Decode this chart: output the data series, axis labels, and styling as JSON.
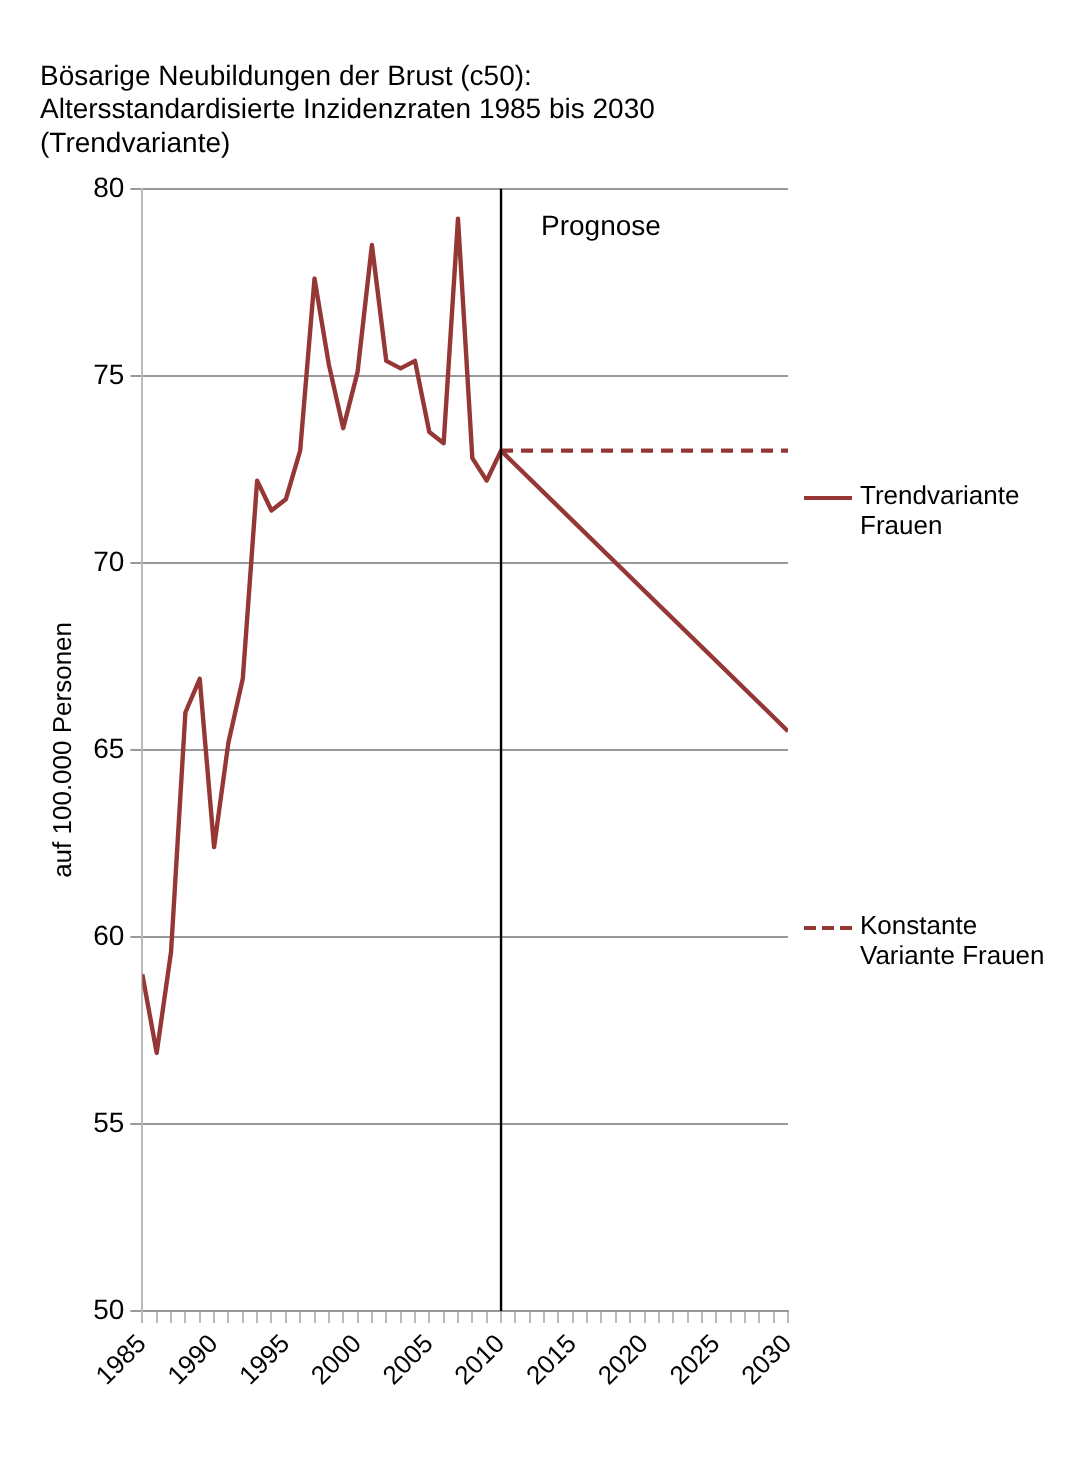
{
  "chart_data": {
    "type": "line",
    "title": "Bösarige Neubildungen der Brust (c50):\nAltersstandardisierte Inzidenzraten 1985 bis 2030\n(Trendvariante)",
    "ylabel": "auf 100.000 Personen",
    "series": [
      {
        "name": "Trendvariante Frauen",
        "color": "#953735",
        "line_style": "solid",
        "x": [
          1985,
          1986,
          1987,
          1988,
          1989,
          1990,
          1991,
          1992,
          1993,
          1994,
          1995,
          1996,
          1997,
          1998,
          1999,
          2000,
          2001,
          2002,
          2003,
          2004,
          2005,
          2006,
          2007,
          2008,
          2009,
          2010,
          2030
        ],
        "values": [
          59.0,
          56.9,
          59.6,
          66.0,
          66.9,
          62.4,
          65.2,
          66.9,
          72.2,
          71.4,
          71.7,
          73.0,
          77.6,
          75.3,
          73.6,
          75.1,
          78.5,
          75.4,
          75.2,
          75.4,
          73.5,
          73.2,
          79.2,
          72.8,
          72.2,
          73.0,
          65.5
        ]
      },
      {
        "name": "Konstante Variante Frauen",
        "color": "#953735",
        "line_style": "dashed",
        "x": [
          2010,
          2030
        ],
        "values": [
          73.0,
          73.0
        ]
      }
    ],
    "xlim": [
      1985,
      2030
    ],
    "xticks": [
      1985,
      {
        "value": 1986,
        "label": null
      },
      {
        "value": 1987,
        "label": null
      },
      {
        "value": 1988,
        "label": null
      },
      {
        "value": 1989,
        "label": null
      },
      1990,
      {
        "value": 1991,
        "label": null
      },
      {
        "value": 1992,
        "label": null
      },
      {
        "value": 1993,
        "label": null
      },
      {
        "value": 1994,
        "label": null
      },
      1995,
      {
        "value": 1996,
        "label": null
      },
      {
        "value": 1997,
        "label": null
      },
      {
        "value": 1998,
        "label": null
      },
      {
        "value": 1999,
        "label": null
      },
      2000,
      {
        "value": 2001,
        "label": null
      },
      {
        "value": 2002,
        "label": null
      },
      {
        "value": 2003,
        "label": null
      },
      {
        "value": 2004,
        "label": null
      },
      2005,
      {
        "value": 2006,
        "label": null
      },
      {
        "value": 2007,
        "label": null
      },
      {
        "value": 2008,
        "label": null
      },
      {
        "value": 2009,
        "label": null
      },
      2010,
      {
        "value": 2011,
        "label": null
      },
      {
        "value": 2012,
        "label": null
      },
      {
        "value": 2013,
        "label": null
      },
      {
        "value": 2014,
        "label": null
      },
      2015,
      {
        "value": 2016,
        "label": null
      },
      {
        "value": 2017,
        "label": null
      },
      {
        "value": 2018,
        "label": null
      },
      {
        "value": 2019,
        "label": null
      },
      2020,
      {
        "value": 2021,
        "label": null
      },
      {
        "value": 2022,
        "label": null
      },
      {
        "value": 2023,
        "label": null
      },
      {
        "value": 2024,
        "label": null
      },
      2025,
      {
        "value": 2026,
        "label": null
      },
      {
        "value": 2027,
        "label": null
      },
      {
        "value": 2028,
        "label": null
      },
      {
        "value": 2029,
        "label": null
      },
      2030
    ],
    "ylim": [
      50,
      80
    ],
    "yticks": [
      50,
      55,
      60,
      65,
      70,
      75,
      80
    ],
    "ref_lines": [
      {
        "axis": "x",
        "value": 2010,
        "label": "Prognose",
        "color": "#000000"
      }
    ],
    "grid": "y",
    "legend": "right",
    "marker": "none"
  }
}
